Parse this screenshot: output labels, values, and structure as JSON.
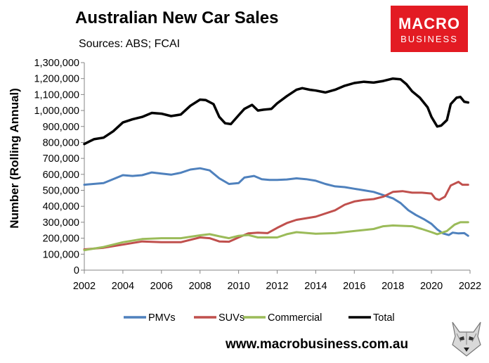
{
  "header": {
    "title": "Australian New Car Sales",
    "sources": "Sources: ABS; FCAI"
  },
  "logo": {
    "line1": "MACRO",
    "line2": "BUSINESS",
    "color": "#e31b23"
  },
  "footer": {
    "website": "www.macrobusiness.com.au"
  },
  "chart_data": {
    "type": "line",
    "title": "Australian New Car Sales",
    "xlabel": "",
    "ylabel": "Number (Rolling Annual)",
    "xlim": [
      2002,
      2022
    ],
    "ylim": [
      0,
      1300000
    ],
    "x_ticks": [
      "2002",
      "2004",
      "2006",
      "2008",
      "2010",
      "2012",
      "2014",
      "2016",
      "2018",
      "2020",
      "2022"
    ],
    "y_ticks": [
      "0",
      "100,000",
      "200,000",
      "300,000",
      "400,000",
      "500,000",
      "600,000",
      "700,000",
      "800,000",
      "900,000",
      "1,000,000",
      "1,100,000",
      "1,200,000",
      "1,300,000"
    ],
    "legend_position": "bottom",
    "series": [
      {
        "name": "PMVs",
        "color": "#4f81bd",
        "points": [
          [
            2002,
            535000
          ],
          [
            2003,
            545000
          ],
          [
            2004,
            595000
          ],
          [
            2004.5,
            590000
          ],
          [
            2005,
            595000
          ],
          [
            2005.5,
            612000
          ],
          [
            2006,
            605000
          ],
          [
            2006.5,
            598000
          ],
          [
            2007,
            610000
          ],
          [
            2007.5,
            630000
          ],
          [
            2008,
            638000
          ],
          [
            2008.5,
            625000
          ],
          [
            2009,
            575000
          ],
          [
            2009.5,
            540000
          ],
          [
            2010,
            545000
          ],
          [
            2010.3,
            580000
          ],
          [
            2010.8,
            590000
          ],
          [
            2011.2,
            570000
          ],
          [
            2011.6,
            565000
          ],
          [
            2012,
            565000
          ],
          [
            2012.5,
            568000
          ],
          [
            2013,
            575000
          ],
          [
            2013.5,
            570000
          ],
          [
            2014,
            560000
          ],
          [
            2014.5,
            540000
          ],
          [
            2015,
            525000
          ],
          [
            2015.5,
            520000
          ],
          [
            2016,
            510000
          ],
          [
            2016.5,
            500000
          ],
          [
            2017,
            490000
          ],
          [
            2017.5,
            470000
          ],
          [
            2018,
            450000
          ],
          [
            2018.4,
            420000
          ],
          [
            2018.8,
            375000
          ],
          [
            2019.2,
            345000
          ],
          [
            2019.6,
            320000
          ],
          [
            2020,
            290000
          ],
          [
            2020.3,
            255000
          ],
          [
            2020.6,
            230000
          ],
          [
            2020.9,
            220000
          ],
          [
            2021.1,
            235000
          ],
          [
            2021.4,
            230000
          ],
          [
            2021.7,
            232000
          ],
          [
            2021.9,
            215000
          ]
        ]
      },
      {
        "name": "SUVs",
        "color": "#c0504d",
        "points": [
          [
            2002,
            130000
          ],
          [
            2003,
            140000
          ],
          [
            2004,
            160000
          ],
          [
            2005,
            180000
          ],
          [
            2006,
            175000
          ],
          [
            2007,
            175000
          ],
          [
            2008,
            205000
          ],
          [
            2008.5,
            200000
          ],
          [
            2009,
            180000
          ],
          [
            2009.5,
            178000
          ],
          [
            2010,
            205000
          ],
          [
            2010.5,
            230000
          ],
          [
            2011,
            235000
          ],
          [
            2011.5,
            232000
          ],
          [
            2012,
            265000
          ],
          [
            2012.5,
            295000
          ],
          [
            2013,
            315000
          ],
          [
            2014,
            335000
          ],
          [
            2015,
            375000
          ],
          [
            2015.5,
            410000
          ],
          [
            2016,
            430000
          ],
          [
            2016.5,
            440000
          ],
          [
            2017,
            445000
          ],
          [
            2017.5,
            460000
          ],
          [
            2018,
            490000
          ],
          [
            2018.5,
            495000
          ],
          [
            2019,
            485000
          ],
          [
            2019.5,
            485000
          ],
          [
            2020,
            480000
          ],
          [
            2020.2,
            448000
          ],
          [
            2020.4,
            440000
          ],
          [
            2020.7,
            460000
          ],
          [
            2021,
            530000
          ],
          [
            2021.4,
            553000
          ],
          [
            2021.6,
            535000
          ],
          [
            2021.9,
            535000
          ]
        ]
      },
      {
        "name": "Commercial",
        "color": "#9bbb59",
        "points": [
          [
            2002,
            125000
          ],
          [
            2003,
            145000
          ],
          [
            2004,
            175000
          ],
          [
            2005,
            195000
          ],
          [
            2006,
            200000
          ],
          [
            2007,
            200000
          ],
          [
            2008,
            218000
          ],
          [
            2008.5,
            225000
          ],
          [
            2009,
            212000
          ],
          [
            2009.5,
            200000
          ],
          [
            2010,
            215000
          ],
          [
            2010.5,
            220000
          ],
          [
            2011,
            205000
          ],
          [
            2012,
            205000
          ],
          [
            2012.5,
            225000
          ],
          [
            2013,
            238000
          ],
          [
            2014,
            228000
          ],
          [
            2015,
            232000
          ],
          [
            2016,
            245000
          ],
          [
            2017,
            258000
          ],
          [
            2017.5,
            275000
          ],
          [
            2018,
            280000
          ],
          [
            2019,
            275000
          ],
          [
            2019.5,
            258000
          ],
          [
            2020,
            238000
          ],
          [
            2020.3,
            225000
          ],
          [
            2020.8,
            245000
          ],
          [
            2021.2,
            285000
          ],
          [
            2021.5,
            300000
          ],
          [
            2021.9,
            300000
          ]
        ]
      },
      {
        "name": "Total",
        "color": "#000000",
        "points": [
          [
            2002,
            790000
          ],
          [
            2002.5,
            820000
          ],
          [
            2003,
            830000
          ],
          [
            2003.5,
            870000
          ],
          [
            2004,
            925000
          ],
          [
            2004.5,
            945000
          ],
          [
            2005,
            960000
          ],
          [
            2005.5,
            985000
          ],
          [
            2006,
            980000
          ],
          [
            2006.5,
            965000
          ],
          [
            2007,
            975000
          ],
          [
            2007.5,
            1030000
          ],
          [
            2008,
            1068000
          ],
          [
            2008.3,
            1065000
          ],
          [
            2008.7,
            1040000
          ],
          [
            2009,
            960000
          ],
          [
            2009.3,
            920000
          ],
          [
            2009.6,
            915000
          ],
          [
            2010,
            970000
          ],
          [
            2010.3,
            1010000
          ],
          [
            2010.7,
            1035000
          ],
          [
            2011,
            1000000
          ],
          [
            2011.3,
            1005000
          ],
          [
            2011.7,
            1010000
          ],
          [
            2012,
            1045000
          ],
          [
            2012.5,
            1090000
          ],
          [
            2013,
            1130000
          ],
          [
            2013.3,
            1140000
          ],
          [
            2013.7,
            1130000
          ],
          [
            2014,
            1125000
          ],
          [
            2014.5,
            1113000
          ],
          [
            2015,
            1130000
          ],
          [
            2015.5,
            1155000
          ],
          [
            2016,
            1172000
          ],
          [
            2016.5,
            1180000
          ],
          [
            2017,
            1175000
          ],
          [
            2017.5,
            1185000
          ],
          [
            2018,
            1200000
          ],
          [
            2018.4,
            1195000
          ],
          [
            2018.7,
            1165000
          ],
          [
            2019,
            1120000
          ],
          [
            2019.4,
            1080000
          ],
          [
            2019.8,
            1020000
          ],
          [
            2020,
            960000
          ],
          [
            2020.3,
            900000
          ],
          [
            2020.5,
            905000
          ],
          [
            2020.8,
            940000
          ],
          [
            2021,
            1040000
          ],
          [
            2021.3,
            1080000
          ],
          [
            2021.5,
            1085000
          ],
          [
            2021.7,
            1055000
          ],
          [
            2021.9,
            1050000
          ]
        ]
      }
    ]
  }
}
